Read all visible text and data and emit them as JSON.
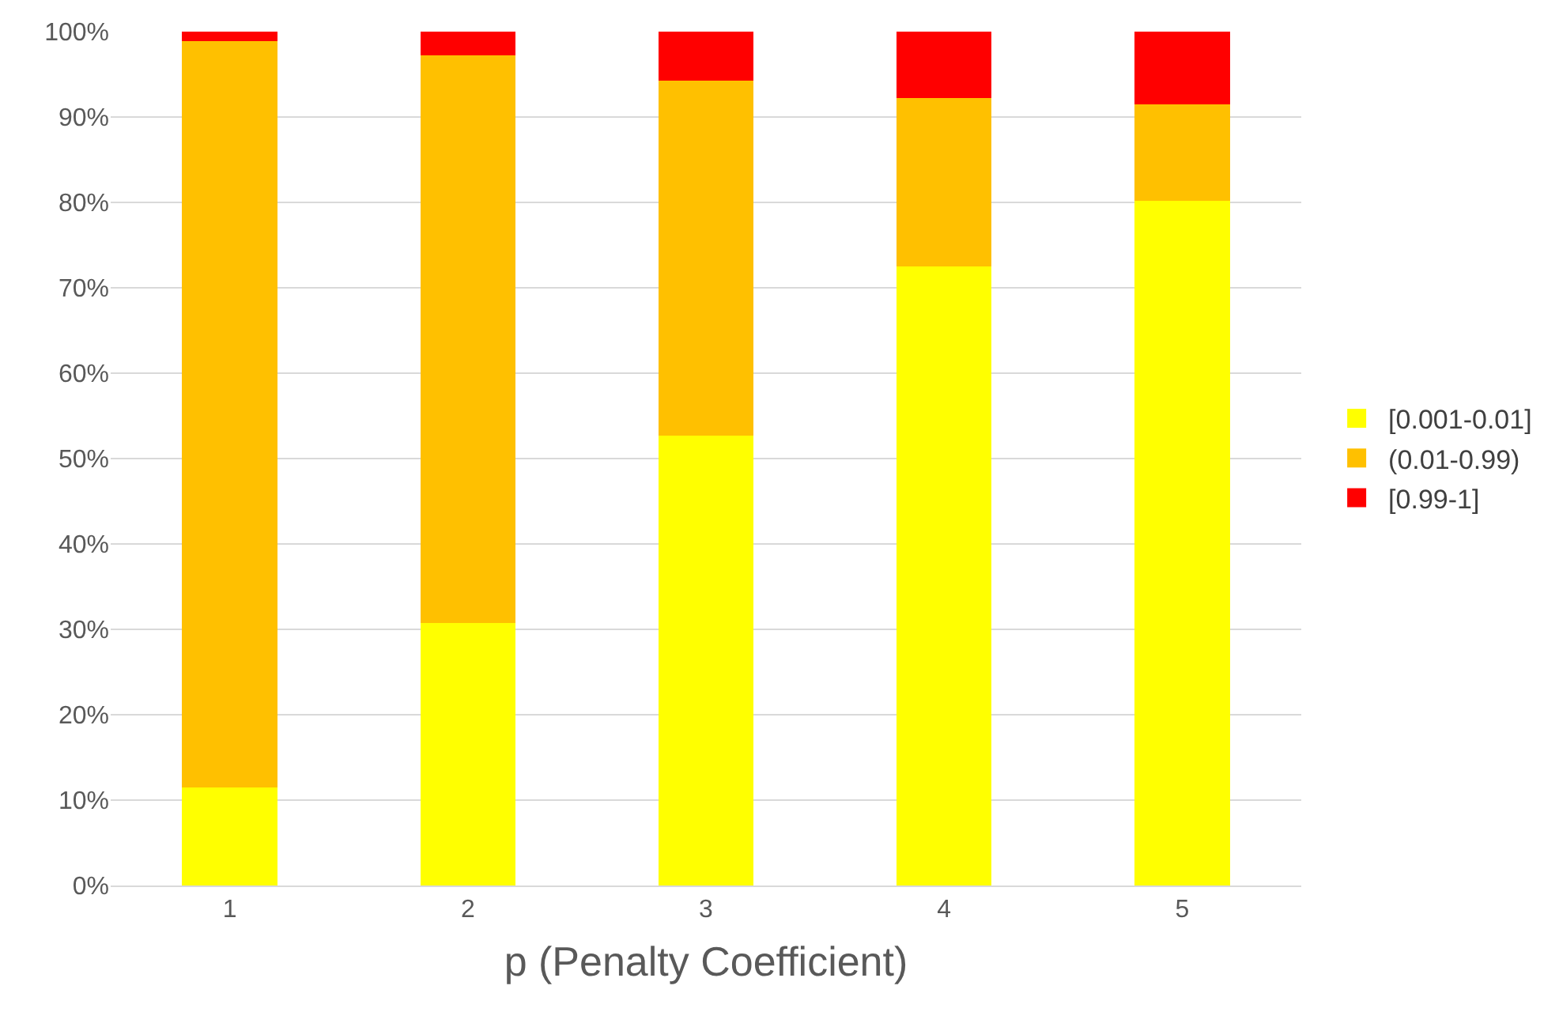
{
  "chart_data": {
    "type": "bar",
    "stacked": true,
    "xlabel": "p (Penalty Coefficient)",
    "categories": [
      "1",
      "2",
      "3",
      "4",
      "5"
    ],
    "series": [
      {
        "name": "[0.001-0.01]",
        "color": "#ffff00",
        "values": [
          11.5,
          30.7,
          52.7,
          72.5,
          80.2
        ]
      },
      {
        "name": "(0.01-0.99)",
        "color": "#ffc000",
        "values": [
          87.4,
          66.5,
          41.6,
          19.7,
          11.3
        ]
      },
      {
        "name": "[0.99-1]",
        "color": "#ff0000",
        "values": [
          1.1,
          2.8,
          5.7,
          7.8,
          8.5
        ]
      }
    ],
    "ylim": [
      0,
      100
    ],
    "yticks": [
      {
        "value": 0,
        "label": "0%"
      },
      {
        "value": 10,
        "label": "10%"
      },
      {
        "value": 20,
        "label": "20%"
      },
      {
        "value": 30,
        "label": "30%"
      },
      {
        "value": 40,
        "label": "40%"
      },
      {
        "value": 50,
        "label": "50%"
      },
      {
        "value": 60,
        "label": "60%"
      },
      {
        "value": 70,
        "label": "70%"
      },
      {
        "value": 80,
        "label": "80%"
      },
      {
        "value": 90,
        "label": "90%"
      },
      {
        "value": 100,
        "label": "100%"
      }
    ],
    "grid": "y",
    "legend": "right"
  }
}
